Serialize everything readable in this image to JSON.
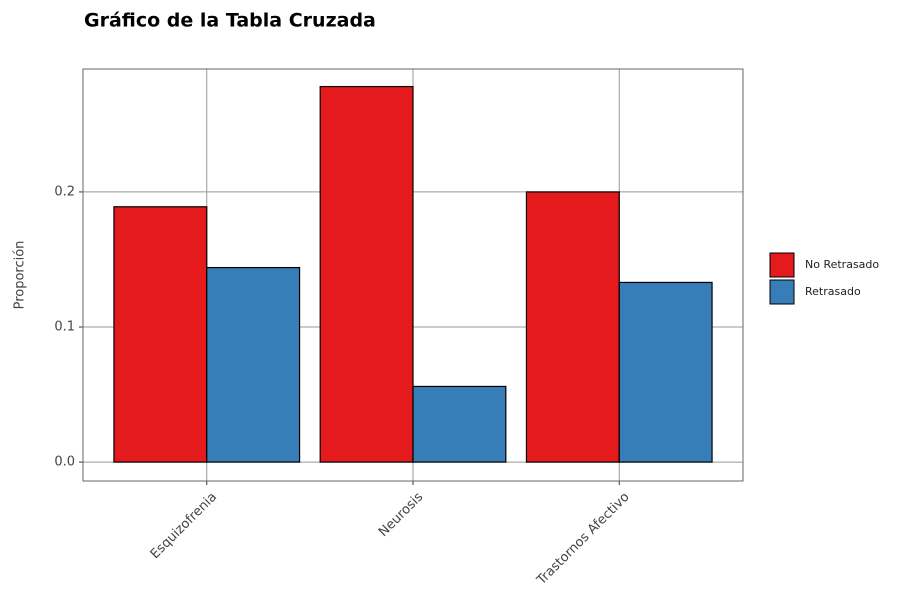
{
  "chart_data": {
    "type": "bar",
    "title": "Gráfico de la Tabla Cruzada",
    "y_label": "Proporción",
    "categories": [
      "Esquizofrenia",
      "Neurosis",
      "Trastornos Afectivo"
    ],
    "series": [
      {
        "name": "No Retrasado",
        "color": "#e41a1c",
        "values": [
          0.189,
          0.278,
          0.2
        ]
      },
      {
        "name": "Retrasado",
        "color": "#377eb8",
        "values": [
          0.144,
          0.056,
          0.133
        ]
      }
    ],
    "ylim": [
      -0.014,
      0.291
    ],
    "yticks": [
      {
        "value": 0,
        "label": "0.0"
      },
      0.1,
      0.2
    ],
    "grid": true,
    "legend": "right"
  }
}
